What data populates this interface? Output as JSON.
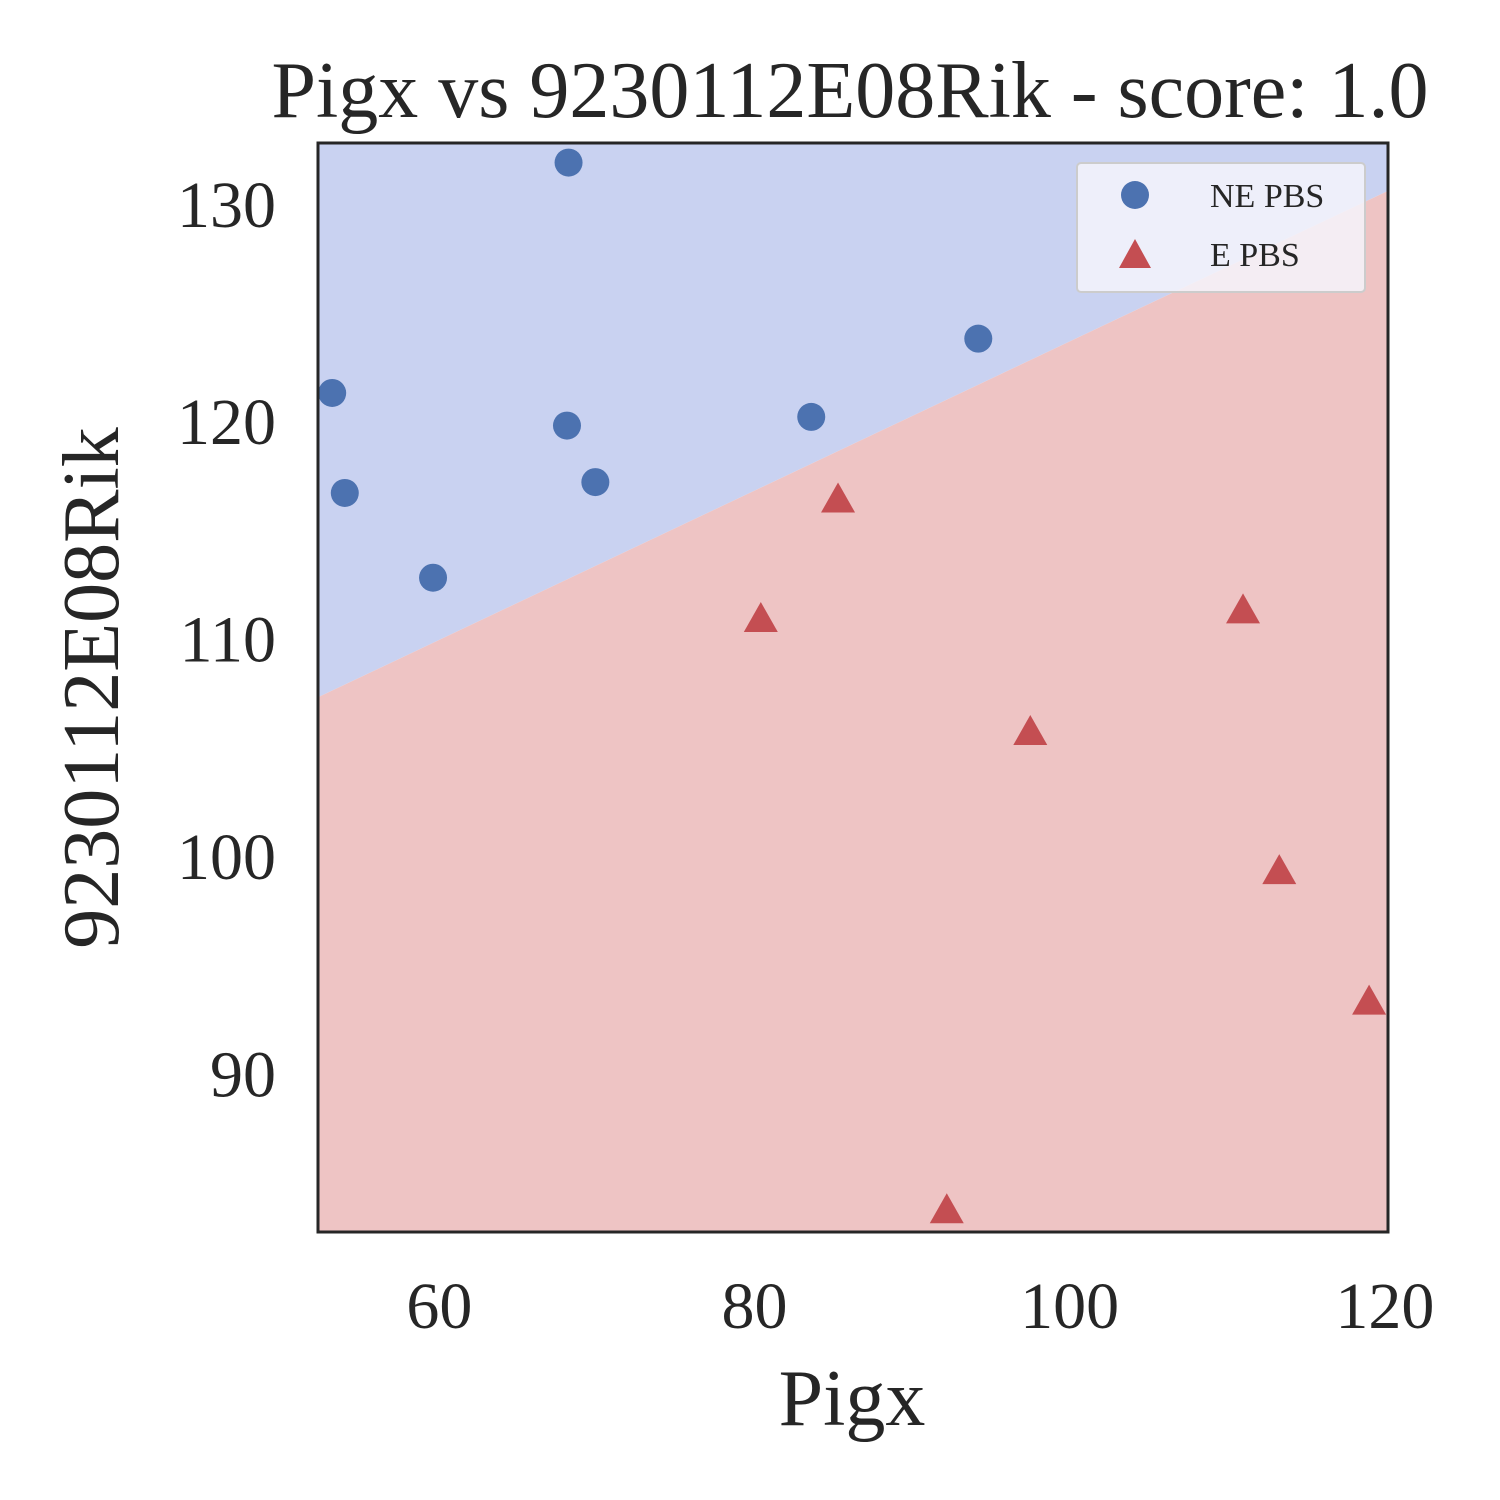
{
  "chart_data": {
    "type": "scatter",
    "title": "Pigx vs 9230112E08Rik - score: 1.0",
    "xlabel": "Pigx",
    "ylabel": "9230112E08Rik",
    "xlim": [
      52.3,
      120.2
    ],
    "ylim": [
      82.7,
      132.8
    ],
    "xticks": [
      60,
      80,
      100,
      120
    ],
    "yticks": [
      90,
      100,
      110,
      120,
      130
    ],
    "grid": false,
    "legend_position": "top-right",
    "decision_boundary": {
      "points": [
        [
          52.3,
          107.3
        ],
        [
          120.2,
          130.6
        ]
      ],
      "region_above_color": "#c9d2f1",
      "region_below_color": "#eec4c4"
    },
    "series": [
      {
        "name": "NE PBS",
        "marker": "circle",
        "color": "#4c72b0",
        "points": [
          [
            68.2,
            131.9
          ],
          [
            53.2,
            121.3
          ],
          [
            54.0,
            116.7
          ],
          [
            68.1,
            119.8
          ],
          [
            69.9,
            117.2
          ],
          [
            59.6,
            112.8
          ],
          [
            83.6,
            120.2
          ],
          [
            94.2,
            123.8
          ]
        ]
      },
      {
        "name": "E PBS",
        "marker": "triangle",
        "color": "#c44e52",
        "points": [
          [
            85.3,
            116.4
          ],
          [
            80.4,
            110.9
          ],
          [
            111.0,
            111.3
          ],
          [
            97.5,
            105.7
          ],
          [
            113.3,
            99.3
          ],
          [
            119.0,
            93.3
          ],
          [
            92.2,
            83.7
          ]
        ]
      }
    ]
  }
}
